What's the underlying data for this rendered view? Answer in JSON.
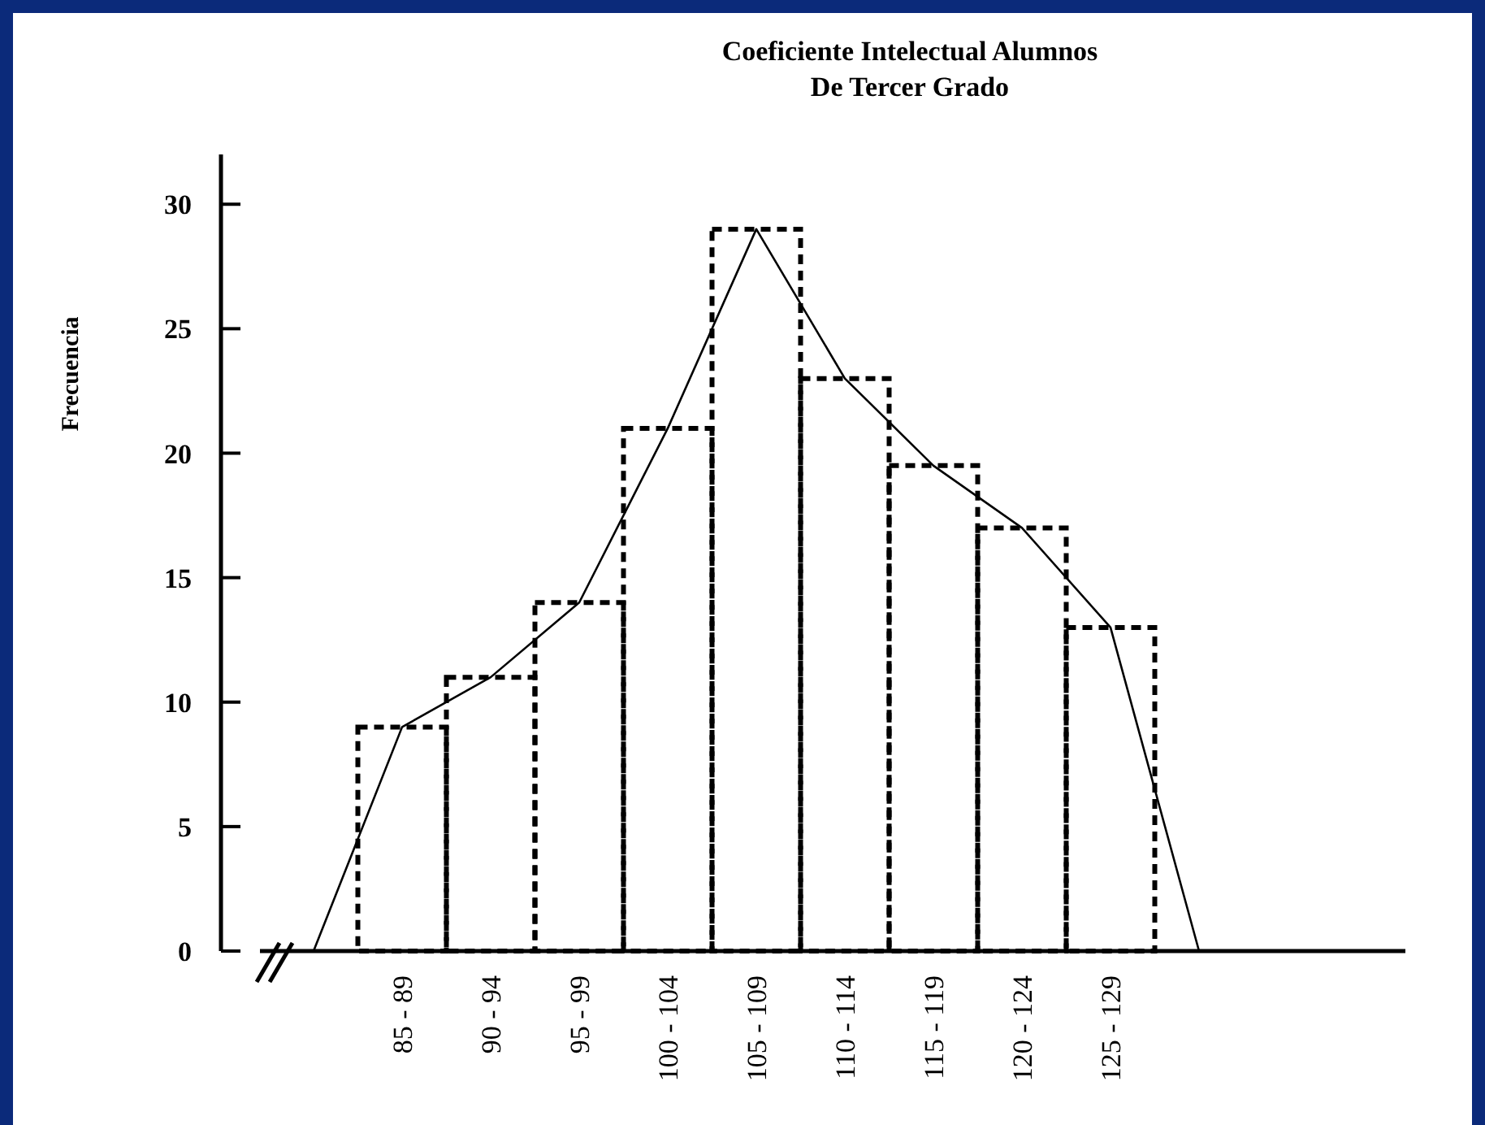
{
  "chart_data": {
    "type": "bar",
    "title": "Coeficiente Intelectual Alumnos\nDe Tercer Grado",
    "ylabel": "Frecuencia",
    "categories": [
      null,
      "85 - 89",
      "90 - 94",
      "95 - 99",
      "100 - 104",
      "105 - 109",
      "110 - 114",
      "115 - 119",
      "120 - 124",
      "125 - 129",
      null
    ],
    "series": [
      {
        "color": "#000000",
        "line_style": "dashed",
        "values": [
          null,
          9,
          11,
          14,
          21,
          29,
          23,
          19.5,
          17,
          13,
          null
        ]
      },
      {
        "type": "line",
        "color": "#000000",
        "line_style": "solid",
        "values": [
          0,
          9,
          11,
          14,
          21,
          29,
          23,
          19.5,
          17,
          13,
          0
        ]
      }
    ],
    "ylim": [
      0,
      32
    ],
    "yticks": [
      0,
      5,
      10,
      15,
      20,
      25,
      30
    ],
    "grid": false,
    "marker": "none"
  }
}
